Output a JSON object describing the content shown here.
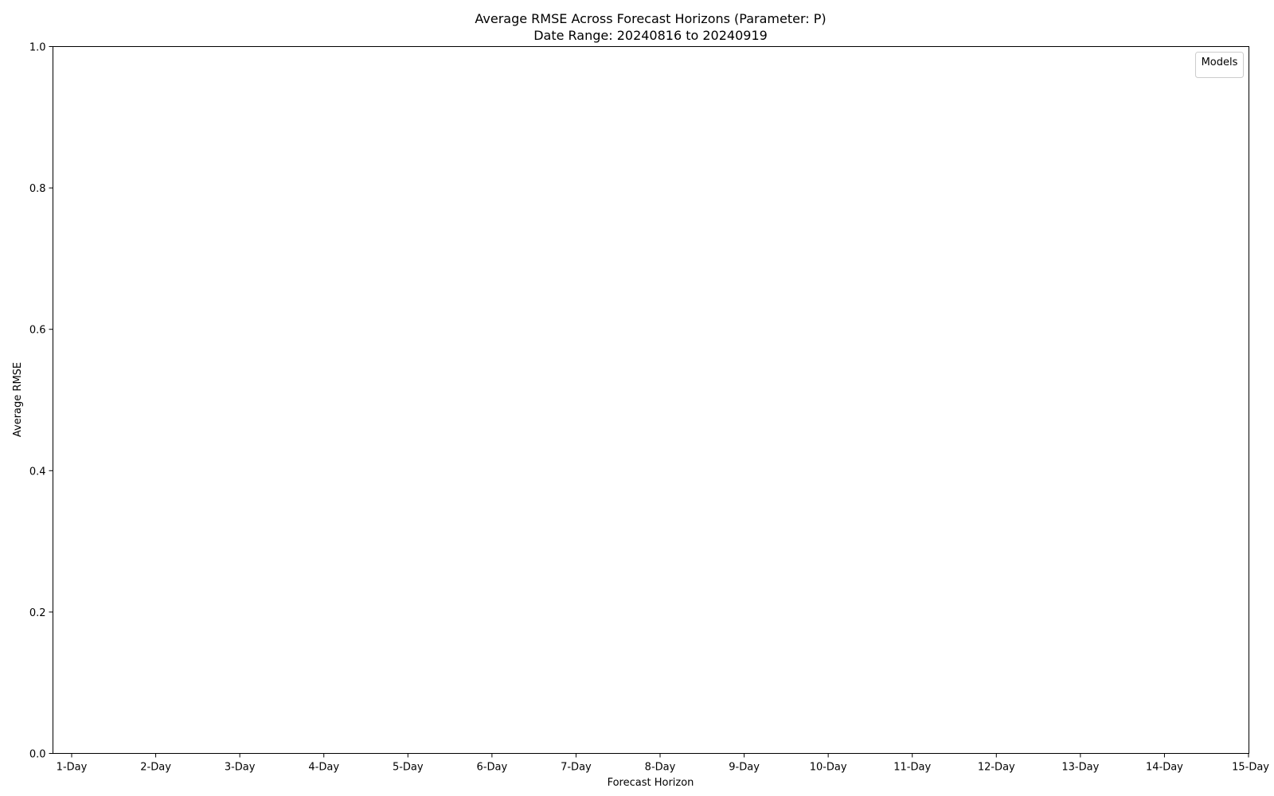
{
  "chart_data": {
    "type": "line",
    "title": "Average RMSE Across Forecast Horizons (Parameter: P)",
    "subtitle": "Date Range: 20240816 to 20240919",
    "xlabel": "Forecast Horizon",
    "ylabel": "Average RMSE",
    "categories": [
      "1-Day",
      "2-Day",
      "3-Day",
      "4-Day",
      "5-Day",
      "6-Day",
      "7-Day",
      "8-Day",
      "9-Day",
      "10-Day",
      "11-Day",
      "12-Day",
      "13-Day",
      "14-Day",
      "15-Day"
    ],
    "ylim": [
      0.0,
      1.0
    ],
    "yticks": [
      "0.0",
      "0.2",
      "0.4",
      "0.6",
      "0.8",
      "1.0"
    ],
    "series": [],
    "legend": {
      "title": "Models",
      "placement": "top-right"
    },
    "grid": false
  }
}
